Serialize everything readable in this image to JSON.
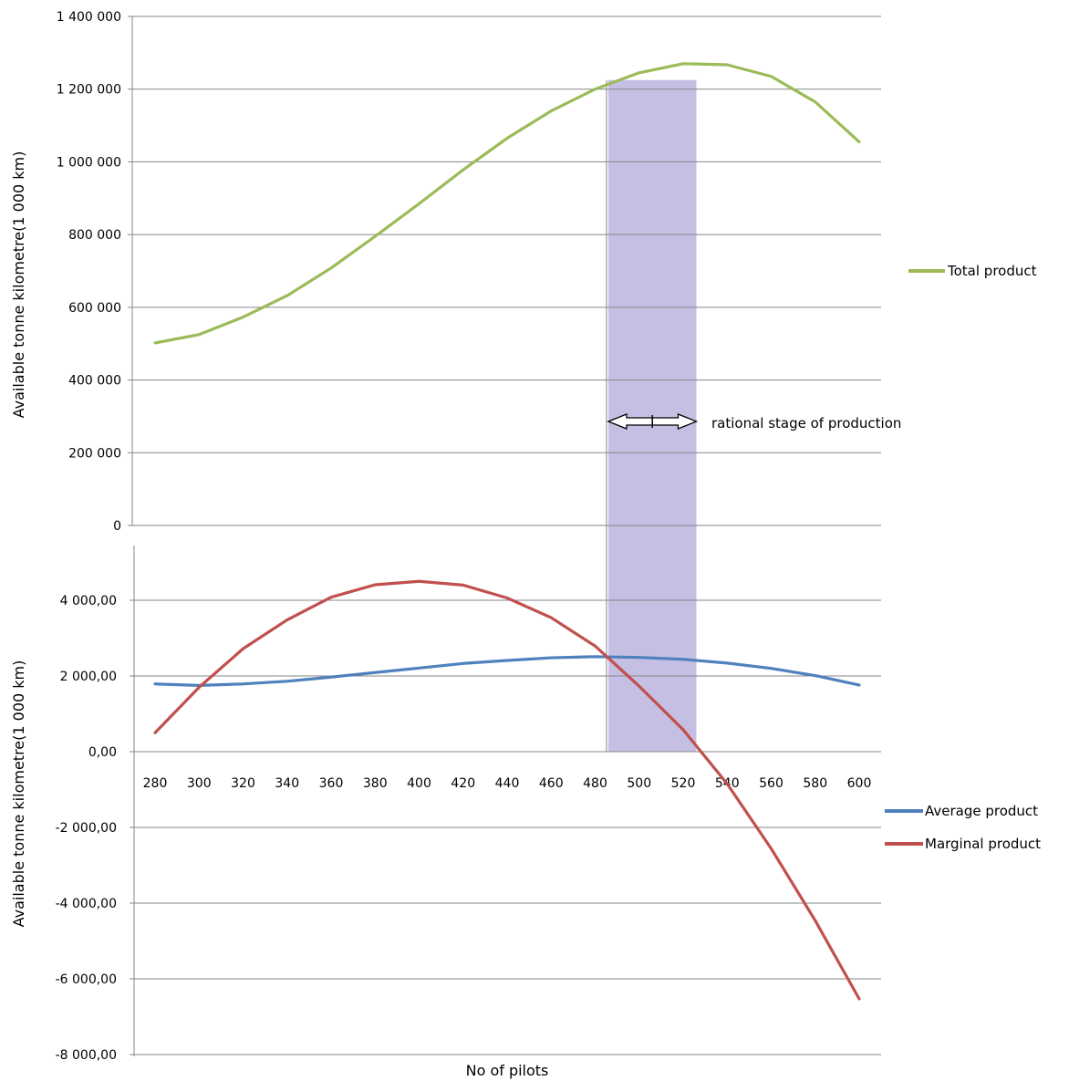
{
  "chart_data": [
    {
      "type": "line",
      "ylabel": "Available tonne kilometre(1 000 km)",
      "ylim": [
        0,
        1400000
      ],
      "y_ticks": [
        {
          "value": 0,
          "label": "0"
        },
        {
          "value": 200000,
          "label": "200 000"
        },
        {
          "value": 400000,
          "label": "400 000"
        },
        {
          "value": 600000,
          "label": "600 000"
        },
        {
          "value": 800000,
          "label": "800 000"
        },
        {
          "value": 1000000,
          "label": "1 000 000"
        },
        {
          "value": 1200000,
          "label": "1 200 000"
        },
        {
          "value": 1400000,
          "label": "1 400 000"
        }
      ],
      "x": [
        280,
        300,
        320,
        340,
        360,
        380,
        400,
        420,
        440,
        460,
        480,
        500,
        520,
        540,
        560,
        580,
        600
      ],
      "series": [
        {
          "name": "Total product",
          "color": "#9bbb59",
          "values": [
            502000,
            525000,
            573000,
            632000,
            708000,
            795000,
            885000,
            978000,
            1065000,
            1140000,
            1200000,
            1245000,
            1270000,
            1267000,
            1235000,
            1165000,
            1055000
          ]
        }
      ],
      "grid": true,
      "legend": "right"
    },
    {
      "type": "line",
      "xlabel": "No of pilots",
      "ylabel": "Available tonne kilometre(1 000 km)",
      "ylim": [
        -8000,
        5000
      ],
      "y_ticks": [
        {
          "value": -8000,
          "label": "-8 000,00"
        },
        {
          "value": -6000,
          "label": "-6 000,00"
        },
        {
          "value": -4000,
          "label": "-4 000,00"
        },
        {
          "value": -2000,
          "label": "-2 000,00"
        },
        {
          "value": 0,
          "label": "0,00"
        },
        {
          "value": 2000,
          "label": "2 000,00"
        },
        {
          "value": 4000,
          "label": "4 000,00"
        }
      ],
      "x": [
        280,
        300,
        320,
        340,
        360,
        380,
        400,
        420,
        440,
        460,
        480,
        500,
        520,
        540,
        560,
        580,
        600
      ],
      "x_tick_labels": [
        "280",
        "300",
        "320",
        "340",
        "360",
        "380",
        "400",
        "420",
        "440",
        "460",
        "480",
        "500",
        "520",
        "540",
        "560",
        "580",
        "600"
      ],
      "series": [
        {
          "name": "Average product",
          "color": "#4f81bd",
          "values": [
            1790,
            1750,
            1790,
            1860,
            1970,
            2090,
            2210,
            2330,
            2410,
            2480,
            2510,
            2490,
            2440,
            2340,
            2200,
            2010,
            1760
          ]
        },
        {
          "name": "Marginal product",
          "color": "#c0504d",
          "values": [
            500,
            1700,
            2720,
            3480,
            4080,
            4410,
            4500,
            4400,
            4060,
            3540,
            2790,
            1730,
            580,
            -850,
            -2560,
            -4460,
            -6530
          ]
        }
      ],
      "grid": true,
      "legend": "right"
    }
  ],
  "shaded_region": {
    "x_range": [
      486,
      526
    ],
    "color": "#c6bfe4",
    "border": "#808080"
  },
  "annotation": {
    "text": "rational stage of production",
    "arrow_x_range": [
      486,
      526
    ]
  }
}
